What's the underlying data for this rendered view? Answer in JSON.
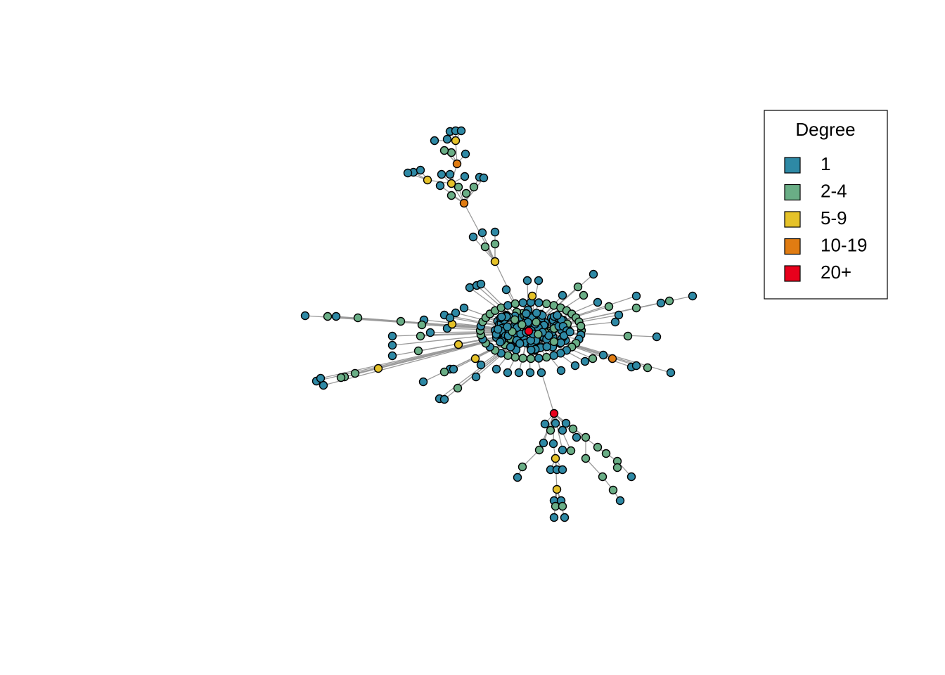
{
  "legend": {
    "title": "Degree",
    "items": [
      {
        "label": "1",
        "color": "#2e89a5"
      },
      {
        "label": "2-4",
        "color": "#6aae86"
      },
      {
        "label": "5-9",
        "color": "#e5c229"
      },
      {
        "label": "10-19",
        "color": "#e07c12"
      },
      {
        "label": "20+",
        "color": "#e8001c"
      }
    ]
  }
}
